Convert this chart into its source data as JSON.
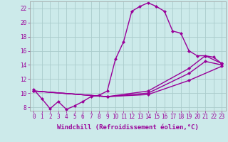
{
  "xlabel": "Windchill (Refroidissement éolien,°C)",
  "bg_color": "#cceaea",
  "grid_color": "#aacccc",
  "line_color": "#990099",
  "xlim": [
    -0.5,
    23.5
  ],
  "ylim": [
    7.5,
    23.0
  ],
  "xticks": [
    0,
    1,
    2,
    3,
    4,
    5,
    6,
    7,
    8,
    9,
    10,
    11,
    12,
    13,
    14,
    15,
    16,
    17,
    18,
    19,
    20,
    21,
    22,
    23
  ],
  "yticks": [
    8,
    10,
    12,
    14,
    16,
    18,
    20,
    22
  ],
  "line1_x": [
    0,
    1,
    2,
    3,
    4,
    5,
    6,
    7,
    8,
    9,
    10,
    11,
    12,
    13,
    14,
    15,
    16,
    17,
    18,
    19,
    20,
    21,
    22,
    23
  ],
  "line1_y": [
    10.5,
    9.2,
    7.8,
    8.8,
    7.7,
    8.2,
    8.8,
    9.5,
    9.7,
    10.3,
    14.8,
    17.3,
    21.6,
    22.3,
    22.8,
    22.3,
    21.6,
    18.8,
    18.5,
    16.0,
    15.3,
    15.3,
    15.1,
    14.2
  ],
  "line2_x": [
    0,
    9,
    14,
    19,
    21,
    23
  ],
  "line2_y": [
    10.3,
    9.5,
    10.3,
    13.5,
    15.3,
    14.2
  ],
  "line3_x": [
    0,
    9,
    14,
    19,
    21,
    23
  ],
  "line3_y": [
    10.3,
    9.5,
    10.0,
    12.8,
    14.5,
    14.0
  ],
  "line4_x": [
    0,
    9,
    14,
    19,
    23
  ],
  "line4_y": [
    10.3,
    9.5,
    9.8,
    11.8,
    13.8
  ],
  "markersize": 2.5,
  "linewidth": 1.0,
  "xlabel_fontsize": 6.5,
  "tick_fontsize": 5.5
}
